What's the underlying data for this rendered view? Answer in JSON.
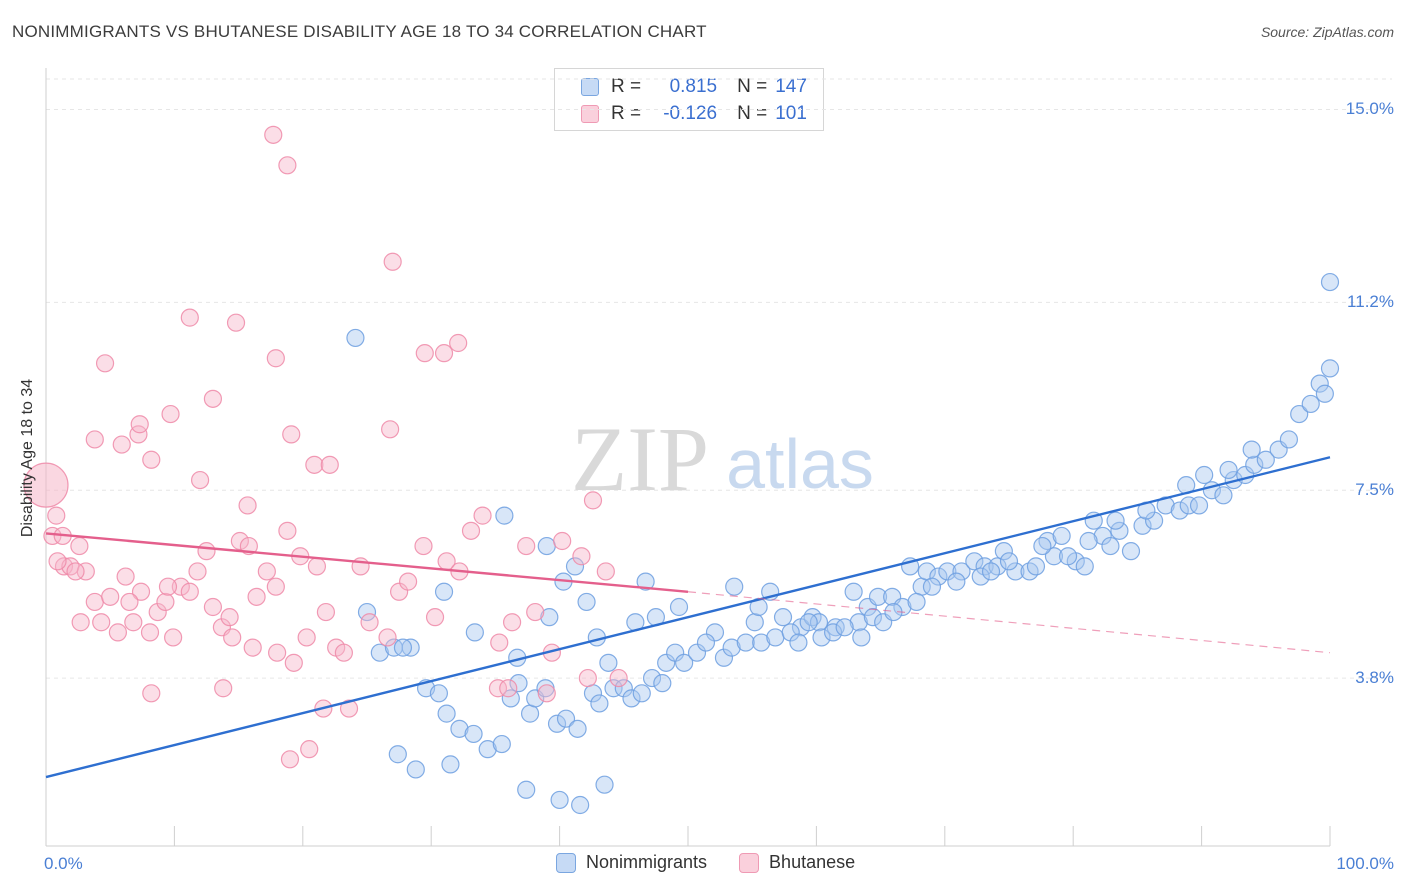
{
  "header": {
    "title": "NONIMMIGRANTS VS BHUTANESE DISABILITY AGE 18 TO 34 CORRELATION CHART",
    "source": "Source: ZipAtlas.com"
  },
  "watermark": {
    "zip": "ZIP",
    "atlas": "atlas"
  },
  "legend": {
    "rows": [
      {
        "r_label": "R =",
        "r_value": "0.815",
        "n_label": "N =",
        "n_value": "147",
        "color": "#a9c7f0"
      },
      {
        "r_label": "R =",
        "r_value": "-0.126",
        "n_label": "N =",
        "n_value": "101",
        "color": "#f6b6c9"
      }
    ]
  },
  "chart_data": {
    "type": "scatter",
    "title": "NONIMMIGRANTS VS BHUTANESE DISABILITY AGE 18 TO 34 CORRELATION CHART",
    "xlabel": "",
    "ylabel": "Disability Age 18 to 34",
    "x_tick_labels": [
      "0.0%",
      "100.0%"
    ],
    "y_tick_labels": [
      "3.8%",
      "7.5%",
      "11.2%",
      "15.0%"
    ],
    "y_ticks": [
      3.8,
      7.5,
      11.2,
      15.0
    ],
    "xlim": [
      0,
      100
    ],
    "ylim": [
      0.65,
      15.6
    ],
    "grid": true,
    "legend_placement": "top-center",
    "series": [
      {
        "name": "Nonimmigrants",
        "color": "#6d9fe0",
        "fill": "#a9c7f0",
        "trend": {
          "x": [
            0,
            100
          ],
          "y": [
            1.85,
            8.15
          ],
          "style": "solid",
          "color": "#2e6fd0"
        },
        "points": [
          [
            24.1,
            10.5
          ],
          [
            35.7,
            7.0
          ],
          [
            39.0,
            6.4
          ],
          [
            40.3,
            5.7
          ],
          [
            41.2,
            6.0
          ],
          [
            42.1,
            5.3
          ],
          [
            39.2,
            5.0
          ],
          [
            42.9,
            4.6
          ],
          [
            43.8,
            4.1
          ],
          [
            46.7,
            5.7
          ],
          [
            47.5,
            5.0
          ],
          [
            48.3,
            4.1
          ],
          [
            49.3,
            5.2
          ],
          [
            52.1,
            4.7
          ],
          [
            53.6,
            5.6
          ],
          [
            55.2,
            4.9
          ],
          [
            55.5,
            5.2
          ],
          [
            56.4,
            5.5
          ],
          [
            57.4,
            5.0
          ],
          [
            58.8,
            4.8
          ],
          [
            59.7,
            5.0
          ],
          [
            60.2,
            4.9
          ],
          [
            61.5,
            4.8
          ],
          [
            62.9,
            5.5
          ],
          [
            63.3,
            4.9
          ],
          [
            64.0,
            5.2
          ],
          [
            64.8,
            5.4
          ],
          [
            65.9,
            5.4
          ],
          [
            66.7,
            5.2
          ],
          [
            67.3,
            6.0
          ],
          [
            68.2,
            5.6
          ],
          [
            68.6,
            5.9
          ],
          [
            69.5,
            5.8
          ],
          [
            70.2,
            5.9
          ],
          [
            71.3,
            5.9
          ],
          [
            72.3,
            6.1
          ],
          [
            73.1,
            6.0
          ],
          [
            74.1,
            6.0
          ],
          [
            74.6,
            6.3
          ],
          [
            75.5,
            5.9
          ],
          [
            76.6,
            5.9
          ],
          [
            77.1,
            6.0
          ],
          [
            78.5,
            6.2
          ],
          [
            78.0,
            6.5
          ],
          [
            79.1,
            6.6
          ],
          [
            80.2,
            6.1
          ],
          [
            80.9,
            6.0
          ],
          [
            81.6,
            6.9
          ],
          [
            82.3,
            6.6
          ],
          [
            82.9,
            6.4
          ],
          [
            83.6,
            6.7
          ],
          [
            84.5,
            6.3
          ],
          [
            85.4,
            6.8
          ],
          [
            86.3,
            6.9
          ],
          [
            87.2,
            7.2
          ],
          [
            88.3,
            7.1
          ],
          [
            89.0,
            7.2
          ],
          [
            89.8,
            7.2
          ],
          [
            90.8,
            7.5
          ],
          [
            91.7,
            7.4
          ],
          [
            92.5,
            7.7
          ],
          [
            93.4,
            7.8
          ],
          [
            94.1,
            8.0
          ],
          [
            95.0,
            8.1
          ],
          [
            96.0,
            8.3
          ],
          [
            96.8,
            8.5
          ],
          [
            97.6,
            9.0
          ],
          [
            98.5,
            9.2
          ],
          [
            99.2,
            9.6
          ],
          [
            100.0,
            9.9
          ],
          [
            99.6,
            9.4
          ],
          [
            100.0,
            11.6
          ],
          [
            37.7,
            3.1
          ],
          [
            38.1,
            3.4
          ],
          [
            38.9,
            3.6
          ],
          [
            39.8,
            2.9
          ],
          [
            40.5,
            3.0
          ],
          [
            41.4,
            2.8
          ],
          [
            42.6,
            3.5
          ],
          [
            43.1,
            3.3
          ],
          [
            44.2,
            3.6
          ],
          [
            45.0,
            3.6
          ],
          [
            45.6,
            3.4
          ],
          [
            46.4,
            3.5
          ],
          [
            47.2,
            3.8
          ],
          [
            48.0,
            3.7
          ],
          [
            49.0,
            4.3
          ],
          [
            49.7,
            4.1
          ],
          [
            50.7,
            4.3
          ],
          [
            51.4,
            4.5
          ],
          [
            52.8,
            4.2
          ],
          [
            53.4,
            4.4
          ],
          [
            54.5,
            4.5
          ],
          [
            55.7,
            4.5
          ],
          [
            56.8,
            4.6
          ],
          [
            58.0,
            4.7
          ],
          [
            58.6,
            4.5
          ],
          [
            59.4,
            4.9
          ],
          [
            60.4,
            4.6
          ],
          [
            61.3,
            4.7
          ],
          [
            62.2,
            4.8
          ],
          [
            63.5,
            4.6
          ],
          [
            64.4,
            5.0
          ],
          [
            65.2,
            4.9
          ],
          [
            66.0,
            5.1
          ],
          [
            67.8,
            5.3
          ],
          [
            69.0,
            5.6
          ],
          [
            70.9,
            5.7
          ],
          [
            72.8,
            5.8
          ],
          [
            73.6,
            5.9
          ],
          [
            75.0,
            6.1
          ],
          [
            77.6,
            6.4
          ],
          [
            79.6,
            6.2
          ],
          [
            81.2,
            6.5
          ],
          [
            83.3,
            6.9
          ],
          [
            85.7,
            7.1
          ],
          [
            88.8,
            7.6
          ],
          [
            90.2,
            7.8
          ],
          [
            92.1,
            7.9
          ],
          [
            93.9,
            8.3
          ],
          [
            26.0,
            4.3
          ],
          [
            27.1,
            4.4
          ],
          [
            28.4,
            4.4
          ],
          [
            29.6,
            3.6
          ],
          [
            30.6,
            3.5
          ],
          [
            31.2,
            3.1
          ],
          [
            32.2,
            2.8
          ],
          [
            33.3,
            2.7
          ],
          [
            34.4,
            2.4
          ],
          [
            35.5,
            2.5
          ],
          [
            36.2,
            3.4
          ],
          [
            36.8,
            3.7
          ],
          [
            25.0,
            5.1
          ],
          [
            27.8,
            4.4
          ],
          [
            31.0,
            5.5
          ],
          [
            33.4,
            4.7
          ],
          [
            36.7,
            4.2
          ],
          [
            27.4,
            2.3
          ],
          [
            31.5,
            2.1
          ],
          [
            28.8,
            2.0
          ],
          [
            37.4,
            1.6
          ],
          [
            40.0,
            1.4
          ],
          [
            41.6,
            1.3
          ],
          [
            43.5,
            1.7
          ],
          [
            45.9,
            4.9
          ]
        ]
      },
      {
        "name": "Bhutanese",
        "color": "#ee8aa8",
        "fill": "#f6b6c9",
        "trend": {
          "x": [
            0,
            50
          ],
          "y": [
            6.65,
            5.5
          ],
          "style": "solid",
          "color": "#e45f8c",
          "extended_to": [
            100,
            4.3
          ]
        },
        "points": [
          [
            0.0,
            7.6
          ],
          [
            0.5,
            6.6
          ],
          [
            0.8,
            7.0
          ],
          [
            1.4,
            6.0
          ],
          [
            1.9,
            6.0
          ],
          [
            2.6,
            6.4
          ],
          [
            3.1,
            5.9
          ],
          [
            3.8,
            5.3
          ],
          [
            4.3,
            4.9
          ],
          [
            5.0,
            5.4
          ],
          [
            5.6,
            4.7
          ],
          [
            6.2,
            5.8
          ],
          [
            6.8,
            4.9
          ],
          [
            7.4,
            5.5
          ],
          [
            8.1,
            4.7
          ],
          [
            8.7,
            5.1
          ],
          [
            9.3,
            5.3
          ],
          [
            9.9,
            4.6
          ],
          [
            10.5,
            5.6
          ],
          [
            11.2,
            5.5
          ],
          [
            11.8,
            5.9
          ],
          [
            12.5,
            6.3
          ],
          [
            13.0,
            5.2
          ],
          [
            13.7,
            4.8
          ],
          [
            14.5,
            4.6
          ],
          [
            15.1,
            6.5
          ],
          [
            15.8,
            6.4
          ],
          [
            16.4,
            5.4
          ],
          [
            17.2,
            5.9
          ],
          [
            17.9,
            5.6
          ],
          [
            18.8,
            6.7
          ],
          [
            19.8,
            6.2
          ],
          [
            20.3,
            4.6
          ],
          [
            21.1,
            6.0
          ],
          [
            21.8,
            5.1
          ],
          [
            22.6,
            4.4
          ],
          [
            23.2,
            4.3
          ],
          [
            24.5,
            6.0
          ],
          [
            25.2,
            4.9
          ],
          [
            26.6,
            4.6
          ],
          [
            27.5,
            5.5
          ],
          [
            28.2,
            5.7
          ],
          [
            29.4,
            6.4
          ],
          [
            30.3,
            5.0
          ],
          [
            31.2,
            6.1
          ],
          [
            32.2,
            5.9
          ],
          [
            33.1,
            6.7
          ],
          [
            34.0,
            7.0
          ],
          [
            35.3,
            4.5
          ],
          [
            36.3,
            4.9
          ],
          [
            37.4,
            6.4
          ],
          [
            38.1,
            5.1
          ],
          [
            39.4,
            4.3
          ],
          [
            40.2,
            6.5
          ],
          [
            41.7,
            6.2
          ],
          [
            42.6,
            7.3
          ],
          [
            43.6,
            5.9
          ],
          [
            2.7,
            4.9
          ],
          [
            6.5,
            5.3
          ],
          [
            9.5,
            5.6
          ],
          [
            14.3,
            5.0
          ],
          [
            16.1,
            4.4
          ],
          [
            18.0,
            4.3
          ],
          [
            19.3,
            4.1
          ],
          [
            21.6,
            3.2
          ],
          [
            23.6,
            3.2
          ],
          [
            4.6,
            10.0
          ],
          [
            7.2,
            8.6
          ],
          [
            9.7,
            9.0
          ],
          [
            11.2,
            10.9
          ],
          [
            13.0,
            9.3
          ],
          [
            14.8,
            10.8
          ],
          [
            17.9,
            10.1
          ],
          [
            19.1,
            8.6
          ],
          [
            20.9,
            8.0
          ],
          [
            22.1,
            8.0
          ],
          [
            12.0,
            7.7
          ],
          [
            15.7,
            7.2
          ],
          [
            3.8,
            8.5
          ],
          [
            5.9,
            8.4
          ],
          [
            7.3,
            8.8
          ],
          [
            8.2,
            8.1
          ],
          [
            17.7,
            14.5
          ],
          [
            18.8,
            13.9
          ],
          [
            27.0,
            12.0
          ],
          [
            29.5,
            10.2
          ],
          [
            31.0,
            10.2
          ],
          [
            32.1,
            10.4
          ],
          [
            26.8,
            8.7
          ],
          [
            1.3,
            6.6
          ],
          [
            2.3,
            5.9
          ],
          [
            0.9,
            6.1
          ],
          [
            8.2,
            3.5
          ],
          [
            13.8,
            3.6
          ],
          [
            19.0,
            2.2
          ],
          [
            20.5,
            2.4
          ],
          [
            35.2,
            3.6
          ],
          [
            36.0,
            3.6
          ],
          [
            39.0,
            3.5
          ],
          [
            42.2,
            3.8
          ],
          [
            44.6,
            3.8
          ]
        ]
      }
    ]
  }
}
